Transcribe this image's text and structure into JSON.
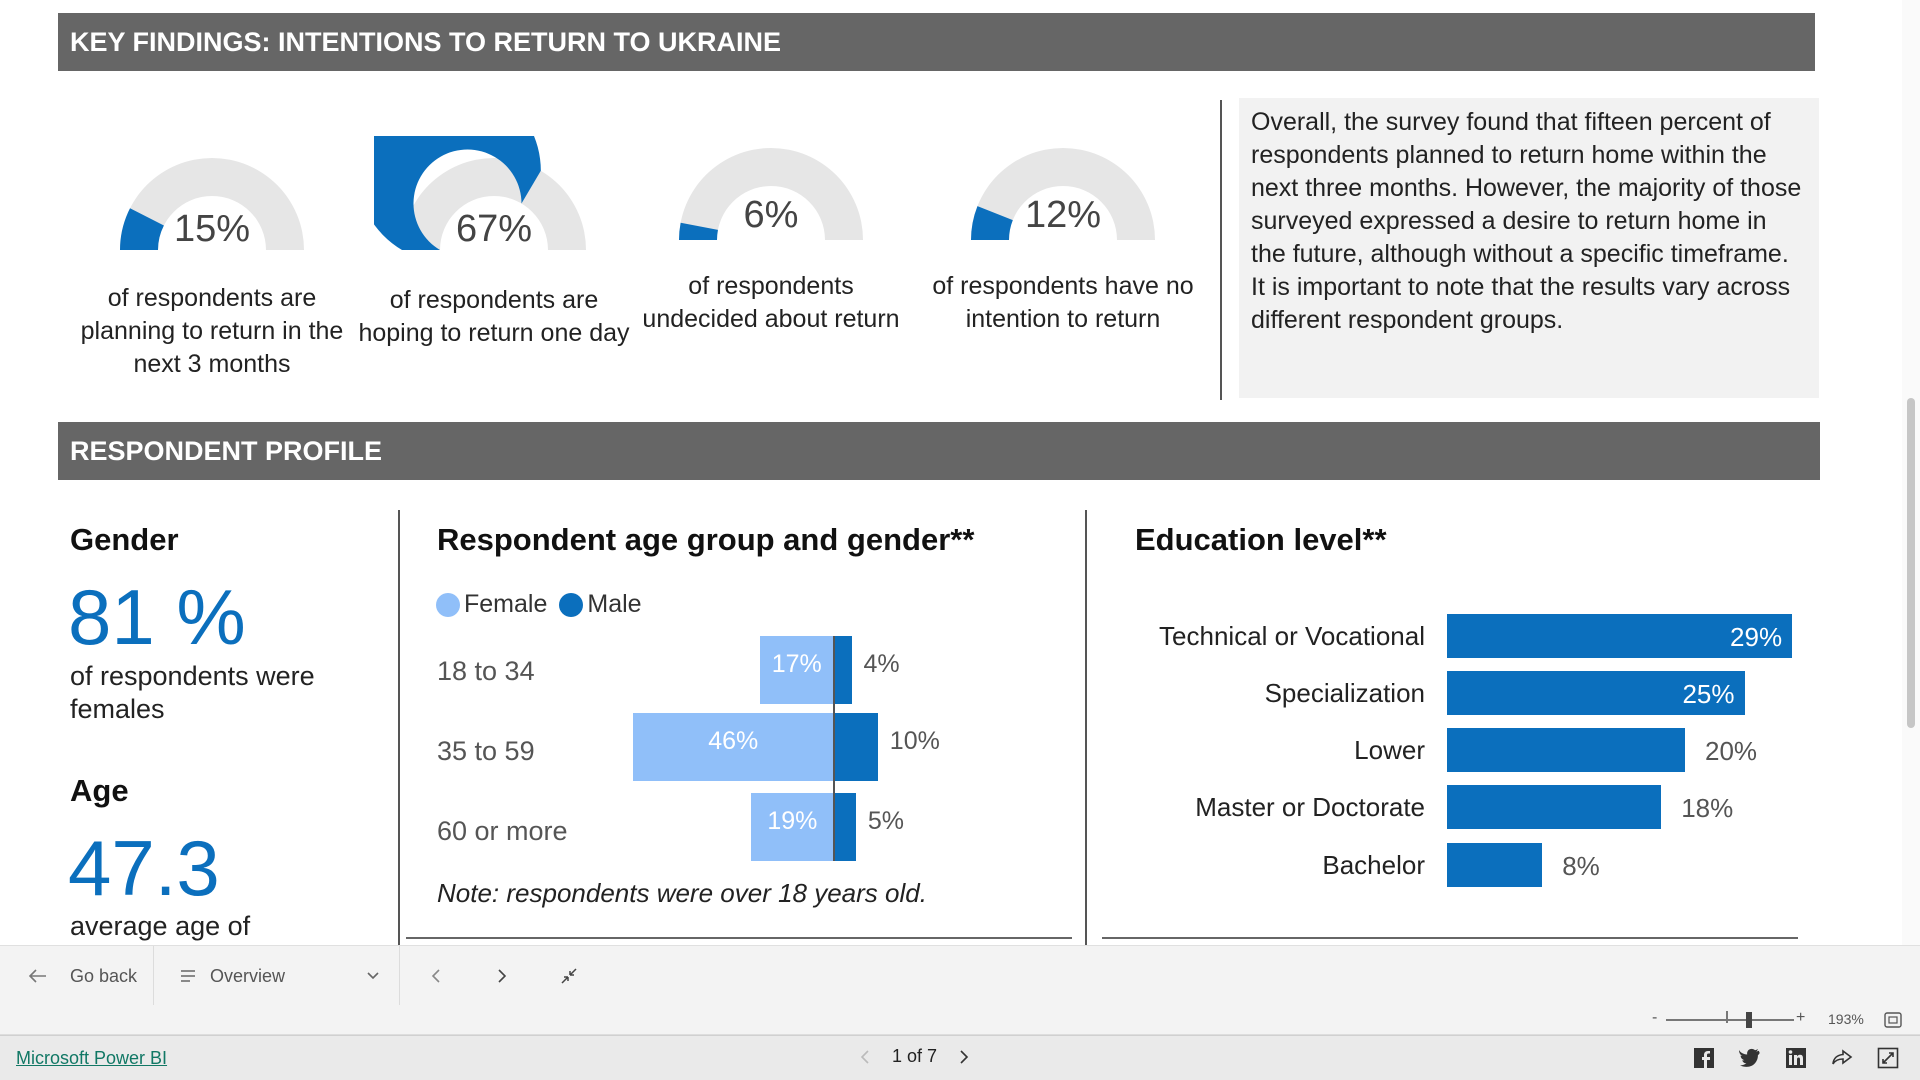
{
  "banners": {
    "key_findings": "KEY FINDINGS: INTENTIONS TO RETURN TO UKRAINE",
    "respondent_profile": "RESPONDENT PROFILE"
  },
  "gauges": [
    {
      "value": 15,
      "pct": "15%",
      "desc": "of respondents are planning to return in the next 3 months"
    },
    {
      "value": 67,
      "pct": "67%",
      "desc": "of respondents are hoping to return one day"
    },
    {
      "value": 6,
      "pct": "6%",
      "desc": "of respondents undecided about return"
    },
    {
      "value": 12,
      "pct": "12%",
      "desc": "of respondents have no intention to return"
    }
  ],
  "summary": {
    "p1": "Overall, the survey found that fifteen percent of respondents planned to return home within the next three months. However, the majority of those surveyed expressed a desire to return home in the future, although without a specific timeframe.",
    "p2": "It is important to note that the results vary across different respondent groups."
  },
  "gender": {
    "title": "Gender",
    "value": "81 %",
    "desc": "of respondents were females"
  },
  "age": {
    "title": "Age",
    "value": "47.3",
    "desc": "average age of"
  },
  "age_gender_chart": {
    "title": "Respondent age group and gender**",
    "legend_female": "Female",
    "legend_male": "Male",
    "note": "Note: respondents were over 18 years old."
  },
  "education_chart": {
    "title": "Education level**"
  },
  "chart_data": [
    {
      "type": "bar",
      "title": "Respondent age group and gender**",
      "categories": [
        "18 to 34",
        "35 to 59",
        "60 or more"
      ],
      "series": [
        {
          "name": "Female",
          "values": [
            17,
            46,
            19
          ],
          "labels": [
            "17%",
            "46%",
            "19%"
          ]
        },
        {
          "name": "Male",
          "values": [
            4,
            10,
            5
          ],
          "labels": [
            "4%",
            "10%",
            "5%"
          ]
        }
      ]
    },
    {
      "type": "bar",
      "title": "Education level**",
      "categories": [
        "Technical or Vocational",
        "Specialization",
        "Lower",
        "Master or Doctorate",
        "Bachelor"
      ],
      "values": [
        29,
        25,
        20,
        18,
        8
      ],
      "labels": [
        "29%",
        "25%",
        "20%",
        "18%",
        "8%"
      ]
    }
  ],
  "colors": {
    "accent_blue": "#0b6fbd",
    "light_blue": "#90bff9",
    "banner_gray": "#666666",
    "gauge_track": "#e6e6e6"
  },
  "nav": {
    "go_back": "Go back",
    "page_select": "Overview",
    "back_icon": "arrow-left-icon",
    "menu_icon": "list-icon",
    "chevron_icon": "chevron-down-icon",
    "prev_icon": "chevron-left-icon",
    "next_icon": "chevron-right-icon",
    "collapse_icon": "collapse-icon"
  },
  "zoom": {
    "level": "193%",
    "minus": "-",
    "plus": "+",
    "fit_icon": "fit-page-icon"
  },
  "footer": {
    "brand": "Microsoft Power BI",
    "pager": "1 of 7",
    "icons": [
      "facebook-icon",
      "twitter-icon",
      "linkedin-icon",
      "share-icon",
      "fullscreen-icon"
    ]
  }
}
